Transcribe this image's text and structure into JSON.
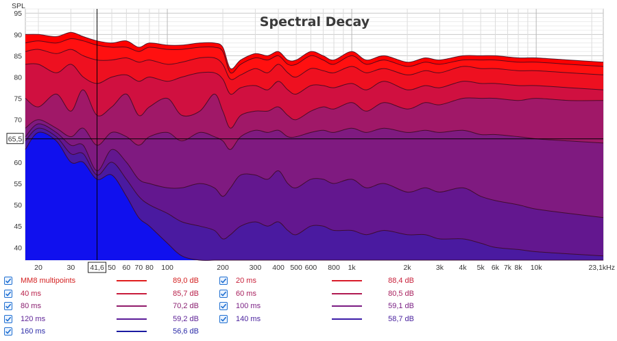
{
  "chart_data": {
    "type": "area",
    "title": "Spectral Decay",
    "ylabel": "SPL",
    "xlabel": "",
    "x_scale": "log",
    "xlim": [
      17,
      23100
    ],
    "ylim": [
      37,
      96
    ],
    "y_ticks": [
      40,
      45,
      50,
      55,
      60,
      65,
      70,
      75,
      80,
      85,
      90,
      95
    ],
    "x_tick_labels": [
      {
        "x": 20,
        "label": "20"
      },
      {
        "x": 30,
        "label": "30"
      },
      {
        "x": 50,
        "label": "50"
      },
      {
        "x": 60,
        "label": "60"
      },
      {
        "x": 70,
        "label": "70"
      },
      {
        "x": 80,
        "label": "80"
      },
      {
        "x": 100,
        "label": "100"
      },
      {
        "x": 200,
        "label": "200"
      },
      {
        "x": 300,
        "label": "300"
      },
      {
        "x": 400,
        "label": "400"
      },
      {
        "x": 500,
        "label": "500"
      },
      {
        "x": 600,
        "label": "600"
      },
      {
        "x": 800,
        "label": "800"
      },
      {
        "x": 1000,
        "label": "1k"
      },
      {
        "x": 2000,
        "label": "2k"
      },
      {
        "x": 3000,
        "label": "3k"
      },
      {
        "x": 4000,
        "label": "4k"
      },
      {
        "x": 5000,
        "label": "5k"
      },
      {
        "x": 6000,
        "label": "6k"
      },
      {
        "x": 7000,
        "label": "7k"
      },
      {
        "x": 8000,
        "label": "8k"
      },
      {
        "x": 10000,
        "label": "10k"
      },
      {
        "x": 23100,
        "label": "23,1kHz"
      }
    ],
    "cursor": {
      "x": 41.6,
      "y": 65.5,
      "x_label": "41,6",
      "y_label": "65,5"
    },
    "series": [
      {
        "name": "MM8 multipoints",
        "color": "#ff0000",
        "x": [
          17,
          20,
          25,
          30,
          35,
          41.6,
          50,
          60,
          70,
          80,
          100,
          120,
          150,
          180,
          200,
          220,
          250,
          300,
          350,
          400,
          450,
          500,
          600,
          700,
          800,
          1000,
          1200,
          1500,
          2000,
          2500,
          3000,
          4000,
          5000,
          6000,
          8000,
          10000,
          15000,
          23100
        ],
        "y": [
          90,
          90,
          89.5,
          90.5,
          89.5,
          88.5,
          88,
          88.5,
          87,
          88,
          87.5,
          87.5,
          88,
          88,
          87,
          82,
          84,
          85.5,
          85,
          86,
          84,
          84,
          86,
          85,
          84,
          86,
          84,
          85,
          83.5,
          84.5,
          84,
          85,
          85,
          85,
          84.5,
          84.5,
          84,
          83.5
        ]
      },
      {
        "name": "20 ms",
        "color": "#ff1010",
        "x": [
          17,
          20,
          25,
          30,
          35,
          41.6,
          50,
          60,
          70,
          80,
          100,
          120,
          150,
          180,
          200,
          220,
          250,
          300,
          350,
          400,
          450,
          500,
          600,
          700,
          800,
          1000,
          1200,
          1500,
          2000,
          2500,
          3000,
          4000,
          5000,
          6000,
          8000,
          10000,
          15000,
          23100
        ],
        "y": [
          88,
          88.5,
          88,
          89,
          88.5,
          87.5,
          87,
          87,
          86,
          87,
          86.5,
          86.5,
          87,
          87,
          86,
          81,
          83,
          84.5,
          84,
          85,
          83,
          83,
          85,
          84,
          83,
          85,
          83,
          84,
          82.5,
          83.5,
          83,
          84,
          84,
          84,
          83.5,
          83.5,
          83,
          82.5
        ]
      },
      {
        "name": "40 ms",
        "color": "#ee1020",
        "x": [
          17,
          20,
          25,
          30,
          35,
          41.6,
          50,
          60,
          70,
          80,
          100,
          120,
          150,
          180,
          200,
          220,
          250,
          300,
          350,
          400,
          450,
          500,
          600,
          700,
          800,
          1000,
          1200,
          1500,
          2000,
          2500,
          3000,
          4000,
          5000,
          6000,
          8000,
          10000,
          15000,
          23100
        ],
        "y": [
          86,
          86.5,
          85.5,
          86.5,
          85,
          84,
          84,
          84.5,
          83.5,
          84,
          83,
          83.5,
          84.5,
          84.5,
          83,
          79.5,
          80.5,
          82,
          81,
          83,
          81,
          80,
          82,
          81.5,
          81,
          82.5,
          81,
          82,
          80.5,
          81.5,
          81,
          82.5,
          82,
          82,
          81.5,
          81.5,
          81,
          80.5
        ]
      },
      {
        "name": "60 ms",
        "color": "#d01040",
        "x": [
          17,
          20,
          25,
          30,
          35,
          41.6,
          50,
          60,
          70,
          80,
          100,
          120,
          150,
          180,
          200,
          220,
          250,
          300,
          350,
          400,
          450,
          500,
          600,
          700,
          800,
          1000,
          1200,
          1500,
          2000,
          2500,
          3000,
          4000,
          5000,
          6000,
          8000,
          10000,
          15000,
          23100
        ],
        "y": [
          83,
          83,
          81,
          83,
          80,
          78.5,
          80,
          80.5,
          79,
          80,
          79,
          80,
          81,
          81,
          79.5,
          76,
          77.5,
          78,
          77,
          79,
          77,
          76,
          78,
          78,
          77.5,
          78.5,
          77,
          79,
          77,
          78,
          77.5,
          79,
          78.5,
          78.5,
          78,
          78,
          77.5,
          77
        ]
      },
      {
        "name": "80 ms",
        "color": "#a01868",
        "x": [
          17,
          20,
          25,
          30,
          35,
          41.6,
          50,
          60,
          70,
          80,
          100,
          120,
          150,
          180,
          200,
          220,
          250,
          300,
          350,
          400,
          450,
          500,
          600,
          700,
          800,
          1000,
          1200,
          1500,
          2000,
          2500,
          3000,
          4000,
          5000,
          6000,
          8000,
          10000,
          15000,
          23100
        ],
        "y": [
          75,
          73,
          76,
          72,
          77,
          71,
          73,
          76,
          71,
          73,
          75,
          71,
          72,
          76,
          72,
          68,
          71,
          72,
          72,
          73,
          71,
          70,
          72,
          73,
          72.5,
          74,
          72,
          74,
          72.5,
          74,
          73.5,
          75,
          75,
          75,
          74.5,
          75,
          74.5,
          74.5
        ]
      },
      {
        "name": "100 ms",
        "color": "#7f1a80",
        "x": [
          17,
          20,
          25,
          30,
          35,
          41.6,
          50,
          60,
          70,
          80,
          100,
          120,
          150,
          180,
          200,
          220,
          250,
          300,
          350,
          400,
          450,
          500,
          600,
          700,
          800,
          1000,
          1200,
          1500,
          2000,
          2500,
          3000,
          4000,
          5000,
          6000,
          8000,
          10000,
          15000,
          23100
        ],
        "y": [
          68,
          70,
          68,
          66,
          68,
          64,
          67,
          66,
          64,
          66,
          67,
          65,
          67,
          66,
          65,
          63,
          66,
          67.5,
          67,
          67.5,
          66,
          66,
          67,
          67.5,
          67,
          68,
          67,
          68,
          67,
          67.5,
          67,
          67.5,
          66.5,
          66.5,
          66,
          65.5,
          65,
          64.5
        ]
      },
      {
        "name": "120 ms",
        "color": "#63178f",
        "x": [
          17,
          20,
          25,
          30,
          35,
          41.6,
          50,
          60,
          70,
          80,
          100,
          120,
          150,
          180,
          200,
          220,
          250,
          300,
          350,
          400,
          450,
          500,
          600,
          700,
          800,
          1000,
          1200,
          1500,
          2000,
          2500,
          3000,
          4000,
          5000,
          6000,
          8000,
          10000,
          15000,
          23100
        ],
        "y": [
          66,
          69,
          67,
          64,
          64,
          58,
          63,
          60,
          56,
          55,
          54,
          54,
          55,
          54,
          52,
          54,
          57,
          57,
          56,
          58,
          55,
          54,
          56,
          56,
          55,
          56,
          54,
          55,
          53,
          54,
          53,
          54,
          52,
          51,
          50,
          49,
          48,
          47
        ]
      },
      {
        "name": "140 ms",
        "color": "#4a1aa0",
        "x": [
          17,
          20,
          25,
          30,
          35,
          41.6,
          50,
          60,
          70,
          80,
          100,
          120,
          150,
          180,
          200,
          220,
          250,
          300,
          350,
          400,
          450,
          500,
          600,
          700,
          800,
          1000,
          1200,
          1500,
          2000,
          2500,
          3000,
          4000,
          5000,
          6000,
          8000,
          10000,
          15000,
          23100
        ],
        "y": [
          65,
          68,
          66,
          62,
          62,
          57,
          60,
          56,
          52,
          50,
          48,
          46,
          45,
          44,
          42,
          43,
          45,
          46,
          45,
          46,
          44,
          43,
          45,
          45,
          44,
          44,
          43,
          44,
          43,
          43,
          42,
          42,
          41,
          40,
          39.5,
          39,
          38.5,
          38
        ]
      },
      {
        "name": "160 ms",
        "color": "#1010ee",
        "x": [
          17,
          20,
          25,
          30,
          35,
          41.6,
          50,
          60,
          70,
          80,
          100,
          120,
          150,
          180,
          200,
          220,
          250,
          300,
          350,
          400,
          450,
          500,
          600,
          700,
          800,
          1000,
          1200,
          1500,
          2000,
          2500,
          3000,
          4000,
          5000,
          6000,
          8000,
          10000,
          15000,
          23100
        ],
        "y": [
          63,
          67,
          65,
          60,
          60,
          56,
          57,
          52,
          47,
          45,
          41,
          38,
          37,
          37,
          37,
          37,
          37,
          37,
          37,
          37,
          37,
          37,
          37,
          37,
          37,
          37,
          37,
          37,
          37,
          37,
          37,
          37,
          37,
          37,
          37,
          37,
          37,
          37
        ]
      }
    ]
  },
  "legend": {
    "items": [
      {
        "name": "MM8 multipoints",
        "value": "89,0 dB",
        "text_color": "#d42020",
        "line_color": "#e01c1c"
      },
      {
        "name": "20 ms",
        "value": "88,4 dB",
        "text_color": "#c8203a",
        "line_color": "#d81a28"
      },
      {
        "name": "40 ms",
        "value": "85,7 dB",
        "text_color": "#b8204a",
        "line_color": "#c81a3a"
      },
      {
        "name": "60 ms",
        "value": "80,5 dB",
        "text_color": "#a8205e",
        "line_color": "#b01850"
      },
      {
        "name": "80 ms",
        "value": "70,2 dB",
        "text_color": "#8a2070",
        "line_color": "#901a6a"
      },
      {
        "name": "100 ms",
        "value": "59,1 dB",
        "text_color": "#7a2084",
        "line_color": "#7a1a82"
      },
      {
        "name": "120 ms",
        "value": "59,2 dB",
        "text_color": "#5e2296",
        "line_color": "#5a1a98"
      },
      {
        "name": "140 ms",
        "value": "58,7 dB",
        "text_color": "#4a229e",
        "line_color": "#3a1aa8"
      },
      {
        "name": "160 ms",
        "value": "56,6 dB",
        "text_color": "#2a2aa8",
        "line_color": "#1a1aa0"
      }
    ]
  }
}
